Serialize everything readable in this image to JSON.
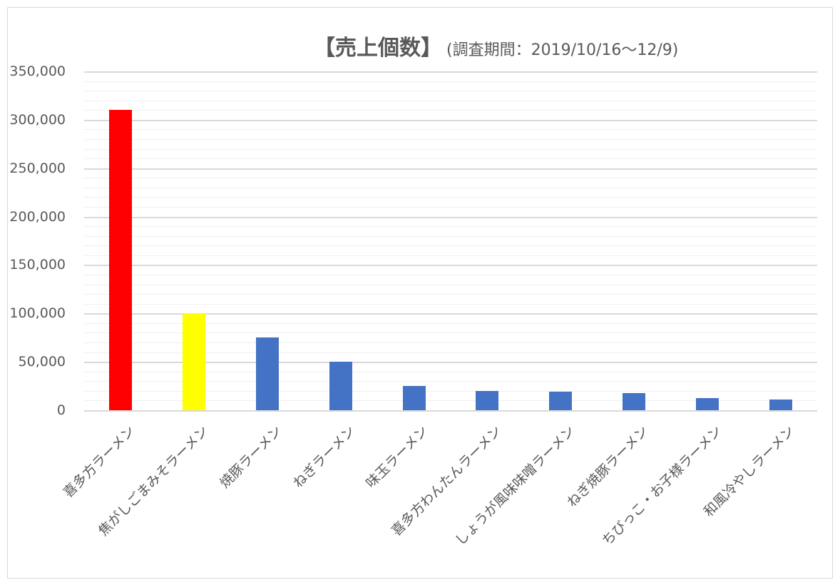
{
  "title": {
    "main": "【売上個数】",
    "sub": "(調査期間：2019/10/16〜12/9)"
  },
  "colors": {
    "highlight_1": "#ff0000",
    "highlight_2": "#ffff00",
    "default": "#4472c4",
    "grid_major": "#d9d9d9",
    "grid_minor": "#efefef",
    "text": "#595959"
  },
  "y_axis": {
    "ticks": [
      "350,000",
      "300,000",
      "250,000",
      "200,000",
      "150,000",
      "100,000",
      "50,000",
      "0"
    ]
  },
  "chart_data": {
    "type": "bar",
    "title": "【売上個数】(調査期間：2019/10/16〜12/9)",
    "xlabel": "",
    "ylabel": "",
    "ylim": [
      0,
      350000
    ],
    "yticks": [
      0,
      50000,
      100000,
      150000,
      200000,
      250000,
      300000,
      350000
    ],
    "grid": true,
    "legend": null,
    "categories": [
      "喜多方ラーメン",
      "焦がしごまみそラーメン",
      "焼豚ラーメン",
      "ねぎラーメン",
      "味玉ラーメン",
      "喜多方わんたんラーメン",
      "しょうが風味味噌ラーメン",
      "ねぎ焼豚ラーメン",
      "ちびっこ・お子様ラーメン",
      "和風冷やしラーメン"
    ],
    "values": [
      310000,
      100000,
      75000,
      50000,
      25000,
      20000,
      19000,
      18000,
      12500,
      11000
    ],
    "bar_colors": [
      "#ff0000",
      "#ffff00",
      "#4472c4",
      "#4472c4",
      "#4472c4",
      "#4472c4",
      "#4472c4",
      "#4472c4",
      "#4472c4",
      "#4472c4"
    ]
  }
}
